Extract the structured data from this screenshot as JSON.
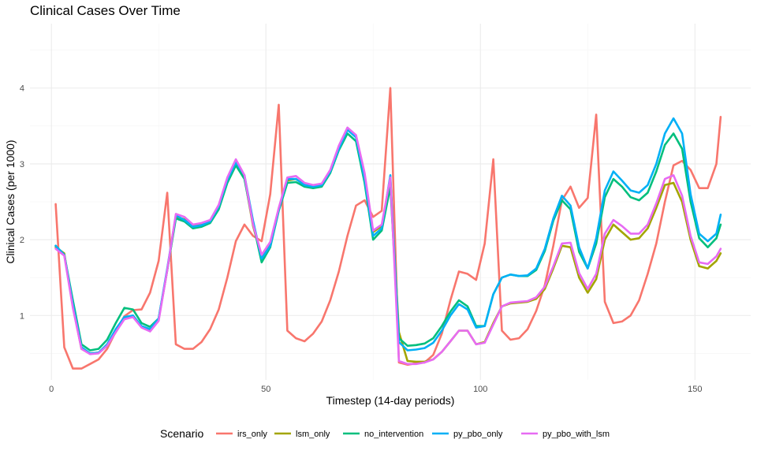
{
  "chart_data": {
    "type": "line",
    "title": "Clinical Cases Over Time",
    "xlabel": "Timestep (14-day periods)",
    "ylabel": "Clinical Cases (per 1000)",
    "xlim": [
      -5,
      163
    ],
    "ylim": [
      0.15,
      4.85
    ],
    "x_ticks": [
      0,
      50,
      100,
      150
    ],
    "y_ticks": [
      1,
      2,
      3,
      4
    ],
    "x_tick_labels": [
      "0",
      "50",
      "100",
      "150"
    ],
    "y_tick_labels": [
      "1",
      "2",
      "3",
      "4"
    ],
    "legend": {
      "title": "Scenario",
      "position": "bottom"
    },
    "x": [
      1,
      3,
      5,
      7,
      9,
      11,
      13,
      15,
      17,
      19,
      21,
      23,
      25,
      27,
      29,
      31,
      33,
      35,
      37,
      39,
      41,
      43,
      45,
      47,
      49,
      51,
      53,
      55,
      57,
      59,
      61,
      63,
      65,
      67,
      69,
      71,
      73,
      75,
      77,
      79,
      81,
      83,
      85,
      87,
      89,
      91,
      93,
      95,
      97,
      99,
      101,
      103,
      105,
      107,
      109,
      111,
      113,
      115,
      117,
      119,
      121,
      123,
      125,
      127,
      129,
      131,
      133,
      135,
      137,
      139,
      141,
      143,
      145,
      147,
      149,
      151,
      153,
      155,
      156
    ],
    "series": [
      {
        "name": "irs_only",
        "color": "#F8766D",
        "values": [
          2.47,
          0.58,
          0.3,
          0.3,
          0.36,
          0.42,
          0.56,
          0.79,
          0.99,
          1.07,
          1.08,
          1.3,
          1.72,
          2.62,
          0.62,
          0.56,
          0.56,
          0.65,
          0.82,
          1.08,
          1.5,
          1.98,
          2.2,
          2.05,
          1.98,
          2.6,
          3.78,
          0.8,
          0.7,
          0.66,
          0.76,
          0.92,
          1.2,
          1.58,
          2.05,
          2.45,
          2.52,
          2.3,
          2.38,
          4.0,
          0.38,
          0.35,
          0.37,
          0.38,
          0.48,
          0.76,
          1.2,
          1.58,
          1.55,
          1.47,
          1.95,
          3.06,
          0.8,
          0.68,
          0.7,
          0.82,
          1.06,
          1.4,
          1.92,
          2.52,
          2.7,
          2.42,
          2.55,
          3.65,
          1.18,
          0.9,
          0.92,
          1.0,
          1.2,
          1.55,
          1.95,
          2.5,
          2.98,
          3.04,
          2.92,
          2.68,
          2.68,
          3.0,
          3.62
        ]
      },
      {
        "name": "lsm_only",
        "color": "#A3A500",
        "values": [
          1.9,
          1.82,
          1.12,
          0.56,
          0.5,
          0.51,
          0.6,
          0.78,
          0.96,
          1.0,
          0.85,
          0.8,
          0.95,
          1.6,
          2.3,
          2.27,
          2.18,
          2.2,
          2.25,
          2.45,
          2.8,
          3.04,
          2.82,
          2.18,
          1.78,
          1.95,
          2.4,
          2.78,
          2.8,
          2.72,
          2.7,
          2.72,
          2.9,
          3.22,
          3.46,
          3.36,
          2.85,
          2.1,
          2.18,
          2.8,
          0.78,
          0.4,
          0.39,
          0.39,
          0.42,
          0.52,
          0.66,
          0.8,
          0.8,
          0.62,
          0.65,
          0.9,
          1.12,
          1.16,
          1.17,
          1.18,
          1.22,
          1.35,
          1.62,
          1.92,
          1.9,
          1.5,
          1.3,
          1.48,
          2.0,
          2.2,
          2.1,
          2.0,
          2.02,
          2.15,
          2.42,
          2.72,
          2.75,
          2.5,
          2.0,
          1.65,
          1.62,
          1.72,
          1.82
        ]
      },
      {
        "name": "no_intervention",
        "color": "#00BF7D",
        "values": [
          1.92,
          1.8,
          1.2,
          0.62,
          0.54,
          0.56,
          0.68,
          0.9,
          1.1,
          1.08,
          0.9,
          0.85,
          0.96,
          1.6,
          2.28,
          2.24,
          2.15,
          2.17,
          2.22,
          2.4,
          2.75,
          2.98,
          2.8,
          2.22,
          1.7,
          1.9,
          2.38,
          2.75,
          2.76,
          2.7,
          2.68,
          2.7,
          2.88,
          3.18,
          3.4,
          3.3,
          2.75,
          2.0,
          2.12,
          2.7,
          0.7,
          0.6,
          0.61,
          0.63,
          0.7,
          0.86,
          1.05,
          1.2,
          1.12,
          0.86,
          0.86,
          1.28,
          1.5,
          1.54,
          1.52,
          1.52,
          1.6,
          1.85,
          2.25,
          2.52,
          2.4,
          1.84,
          1.62,
          1.95,
          2.56,
          2.8,
          2.7,
          2.56,
          2.52,
          2.62,
          2.9,
          3.25,
          3.4,
          3.2,
          2.5,
          2.02,
          1.9,
          2.02,
          2.2
        ]
      },
      {
        "name": "py_pbo_only",
        "color": "#00B0F6",
        "values": [
          1.92,
          1.8,
          1.15,
          0.58,
          0.5,
          0.51,
          0.62,
          0.82,
          0.98,
          1.0,
          0.86,
          0.82,
          0.96,
          1.62,
          2.32,
          2.26,
          2.17,
          2.19,
          2.24,
          2.44,
          2.79,
          3.02,
          2.85,
          2.25,
          1.75,
          1.92,
          2.4,
          2.8,
          2.8,
          2.72,
          2.7,
          2.72,
          2.9,
          3.2,
          3.45,
          3.35,
          2.8,
          2.05,
          2.15,
          2.85,
          0.65,
          0.54,
          0.55,
          0.57,
          0.64,
          0.8,
          1.0,
          1.15,
          1.08,
          0.84,
          0.86,
          1.28,
          1.5,
          1.54,
          1.52,
          1.53,
          1.62,
          1.88,
          2.28,
          2.58,
          2.45,
          1.9,
          1.62,
          2.02,
          2.65,
          2.9,
          2.78,
          2.65,
          2.62,
          2.72,
          3.0,
          3.4,
          3.6,
          3.4,
          2.6,
          2.08,
          1.98,
          2.08,
          2.33
        ]
      },
      {
        "name": "py_pbo_with_lsm",
        "color": "#E76BF3",
        "values": [
          1.88,
          1.79,
          1.1,
          0.56,
          0.49,
          0.5,
          0.6,
          0.78,
          0.95,
          0.98,
          0.84,
          0.79,
          0.93,
          1.6,
          2.34,
          2.3,
          2.2,
          2.22,
          2.26,
          2.46,
          2.82,
          3.06,
          2.85,
          2.2,
          1.8,
          1.97,
          2.42,
          2.82,
          2.84,
          2.75,
          2.72,
          2.74,
          2.92,
          3.24,
          3.48,
          3.38,
          2.88,
          2.12,
          2.2,
          2.82,
          0.4,
          0.36,
          0.36,
          0.38,
          0.42,
          0.52,
          0.66,
          0.8,
          0.8,
          0.62,
          0.64,
          0.88,
          1.12,
          1.17,
          1.18,
          1.19,
          1.24,
          1.38,
          1.65,
          1.95,
          1.96,
          1.56,
          1.35,
          1.55,
          2.08,
          2.26,
          2.18,
          2.08,
          2.08,
          2.2,
          2.48,
          2.8,
          2.85,
          2.58,
          2.05,
          1.7,
          1.68,
          1.78,
          1.88
        ]
      }
    ]
  }
}
